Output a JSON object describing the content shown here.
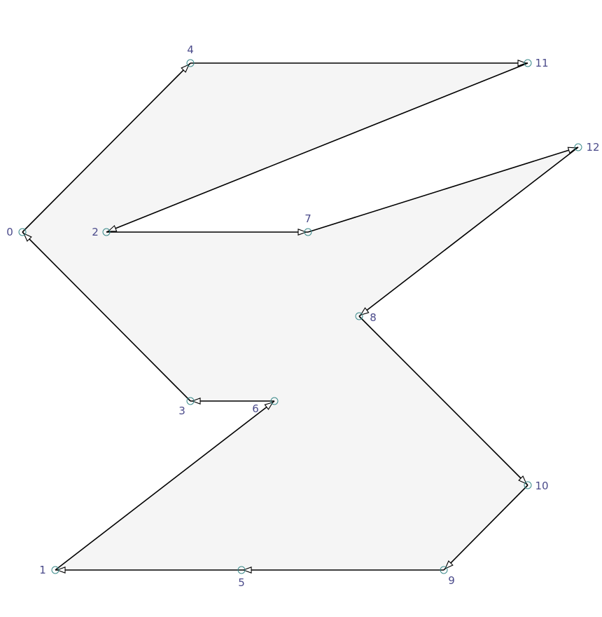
{
  "diagram": {
    "vertices": [
      {
        "id": "0",
        "label": "0"
      },
      {
        "id": "1",
        "label": "1"
      },
      {
        "id": "2",
        "label": "2"
      },
      {
        "id": "3",
        "label": "3"
      },
      {
        "id": "4",
        "label": "4"
      },
      {
        "id": "5",
        "label": "5"
      },
      {
        "id": "6",
        "label": "6"
      },
      {
        "id": "7",
        "label": "7"
      },
      {
        "id": "8",
        "label": "8"
      },
      {
        "id": "9",
        "label": "9"
      },
      {
        "id": "10",
        "label": "10"
      },
      {
        "id": "11",
        "label": "11"
      },
      {
        "id": "12",
        "label": "12"
      }
    ],
    "edges": [
      {
        "from": "0",
        "to": "4"
      },
      {
        "from": "4",
        "to": "11"
      },
      {
        "from": "11",
        "to": "2"
      },
      {
        "from": "2",
        "to": "7"
      },
      {
        "from": "7",
        "to": "12"
      },
      {
        "from": "12",
        "to": "8"
      },
      {
        "from": "8",
        "to": "10"
      },
      {
        "from": "10",
        "to": "9"
      },
      {
        "from": "9",
        "to": "5"
      },
      {
        "from": "5",
        "to": "1"
      },
      {
        "from": "1",
        "to": "6"
      },
      {
        "from": "6",
        "to": "3"
      },
      {
        "from": "3",
        "to": "0"
      }
    ],
    "colors": {
      "fill": "#f5f5f5",
      "edge": "#000000",
      "label": "#4a4a8a",
      "marker": "#3a8a8a"
    }
  }
}
